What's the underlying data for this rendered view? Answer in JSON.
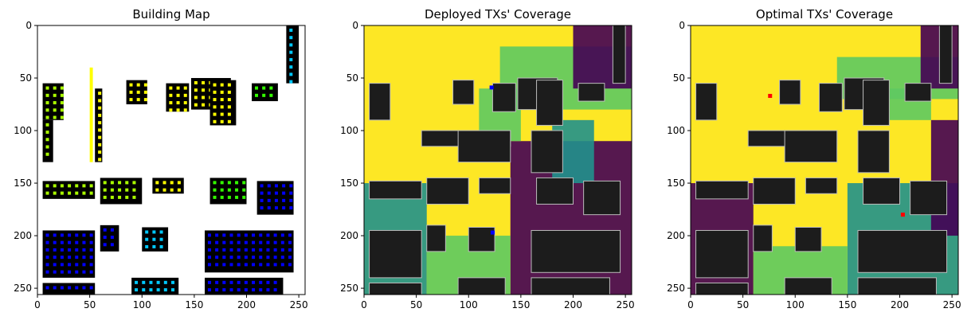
{
  "chart_data": [
    {
      "type": "heatmap",
      "title": "Building Map",
      "x_ticks": [
        0,
        50,
        100,
        150,
        200,
        250
      ],
      "y_ticks": [
        0,
        50,
        100,
        150,
        200,
        250
      ],
      "xlim": [
        0,
        256
      ],
      "ylim": [
        256,
        0
      ],
      "grid": false,
      "background": "#ffffff",
      "colors": {
        "building": "#000000",
        "lime": "#aaff00",
        "yellow": "#ffff00",
        "green": "#33ff00",
        "cyan": "#00c8ff",
        "blue": "#0000ff"
      }
    },
    {
      "type": "heatmap",
      "title": "Deployed TXs' Coverage",
      "x_ticks": [
        0,
        50,
        100,
        150,
        200,
        250
      ],
      "y_ticks": [
        0,
        50,
        100,
        150,
        200,
        250
      ],
      "xlim": [
        0,
        256
      ],
      "ylim": [
        256,
        0
      ],
      "grid": false,
      "colors": {
        "high": "#fde725",
        "mid": "#5ec962",
        "low": "#21918c",
        "none": "#440154",
        "building": "#1c1c1c"
      },
      "tx_points": [
        {
          "x": 122,
          "y": 59,
          "color": "#0000ff"
        },
        {
          "x": 123,
          "y": 197,
          "color": "#0000ff"
        }
      ]
    },
    {
      "type": "heatmap",
      "title": "Optimal TXs' Coverage",
      "x_ticks": [
        0,
        50,
        100,
        150,
        200,
        250
      ],
      "y_ticks": [
        0,
        50,
        100,
        150,
        200,
        250
      ],
      "xlim": [
        0,
        256
      ],
      "ylim": [
        256,
        0
      ],
      "grid": false,
      "colors": {
        "high": "#fde725",
        "mid": "#5ec962",
        "low": "#21918c",
        "none": "#440154",
        "building": "#1c1c1c"
      },
      "tx_points": [
        {
          "x": 76,
          "y": 67,
          "color": "#ff0000"
        },
        {
          "x": 203,
          "y": 180,
          "color": "#ff0000"
        }
      ]
    }
  ]
}
